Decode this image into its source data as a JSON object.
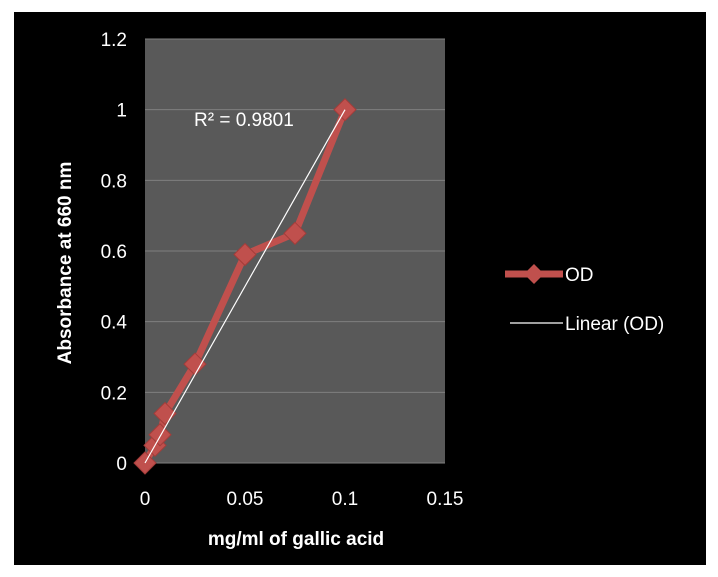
{
  "chart_data": {
    "type": "scatter",
    "title": "",
    "xlabel": "mg/ml  of gallic acid",
    "ylabel": "Absorbance at 660 nm",
    "xlim": [
      0,
      0.15
    ],
    "ylim": [
      0,
      1.2
    ],
    "x_ticks": [
      0,
      0.05,
      0.1,
      0.15
    ],
    "y_ticks": [
      0,
      0.2,
      0.4,
      0.6,
      0.8,
      1,
      1.2
    ],
    "x_tick_labels": [
      "0",
      "0.05",
      "0.1",
      "0.15"
    ],
    "y_tick_labels": [
      "0",
      "0.2",
      "0.4",
      "0.6",
      "0.8",
      "1",
      "1.2"
    ],
    "grid": "horizontal",
    "legend_position": "right",
    "series": [
      {
        "name": "OD",
        "x": [
          0,
          0.005,
          0.0075,
          0.01,
          0.025,
          0.05,
          0.075,
          0.1
        ],
        "y": [
          0,
          0.05,
          0.08,
          0.14,
          0.28,
          0.59,
          0.65,
          1.0
        ],
        "color": "#c0504d",
        "marker": "diamond"
      }
    ],
    "trendline": {
      "name": "Linear (OD)",
      "type": "linear",
      "color": "#ffffff",
      "x": [
        0,
        0.1
      ],
      "y": [
        0.0,
        1.0
      ]
    },
    "annotations": [
      {
        "text": "R² = 0.9801"
      }
    ],
    "plot_background": "#595959",
    "chart_background": "#000000",
    "gridline_color": "#7f7f7f"
  }
}
